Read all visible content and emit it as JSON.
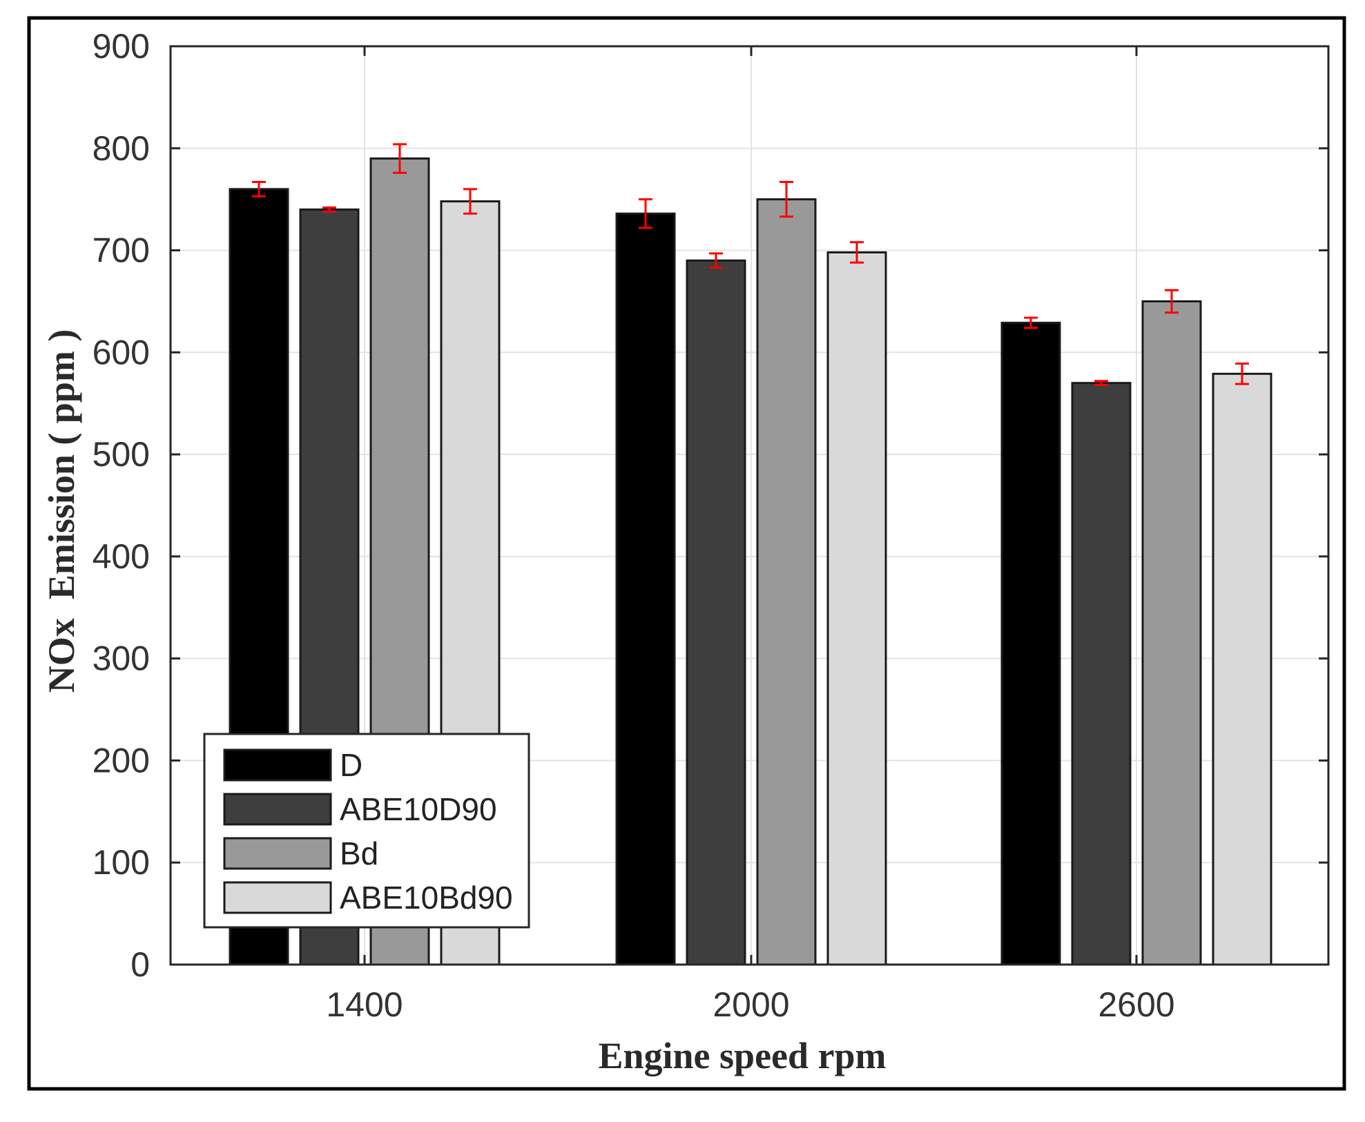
{
  "chart_data": {
    "type": "bar",
    "title": "",
    "xlabel": "Engine speed rpm",
    "ylabel": "NOx  Emission ( ppm )",
    "categories": [
      "1400",
      "2000",
      "2600"
    ],
    "ylim": [
      0,
      900
    ],
    "yticks": [
      0,
      100,
      200,
      300,
      400,
      500,
      600,
      700,
      800,
      900
    ],
    "grid": true,
    "legend_position": "bottom-left",
    "error_bar_color": "#ff0000",
    "series": [
      {
        "name": "D",
        "color": "#000000",
        "values": [
          760,
          736,
          629
        ],
        "errors": [
          7,
          14,
          5
        ]
      },
      {
        "name": "ABE10D90",
        "color": "#3e3e3e",
        "values": [
          740,
          690,
          570
        ],
        "errors": [
          2,
          7,
          2
        ]
      },
      {
        "name": "Bd",
        "color": "#999999",
        "values": [
          790,
          750,
          650
        ],
        "errors": [
          14,
          17,
          11
        ]
      },
      {
        "name": "ABE10Bd90",
        "color": "#d9d9d9",
        "values": [
          748,
          698,
          579
        ],
        "errors": [
          12,
          10,
          10
        ]
      }
    ]
  }
}
